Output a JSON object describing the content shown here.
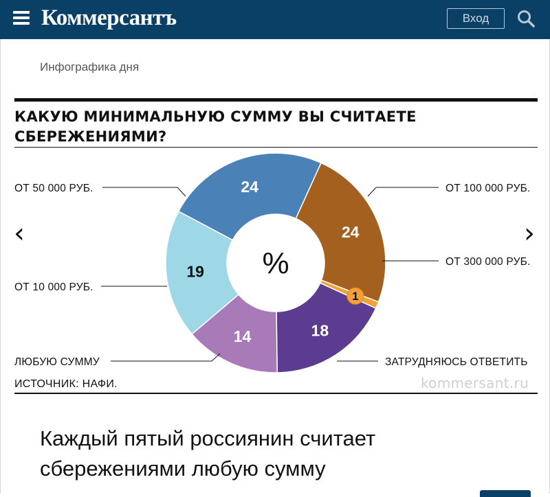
{
  "header": {
    "logo": "Коммерсантъ",
    "login_label": "Вход"
  },
  "section": "Инфографика дня",
  "nav": {
    "prev": "‹",
    "next": "›"
  },
  "chart_data": {
    "type": "pie",
    "title": "КАКУЮ МИНИМАЛЬНУЮ СУММУ ВЫ СЧИТАЕТЕ СБЕРЕЖЕНИЯМИ?",
    "center_label": "%",
    "slices": [
      {
        "label": "ОТ 100 000 РУБ.",
        "value": 24,
        "color": "#4a82b8"
      },
      {
        "label": "ОТ 300 000 РУБ.",
        "value": 24,
        "color": "#a4601f"
      },
      {
        "label": "ЗАТРУДНЯЮСЬ ОТВЕТИТЬ",
        "value": 1,
        "color": "#f4a03a"
      },
      {
        "label": "ЛЮБУЮ СУММУ",
        "value": 18,
        "color": "#5b3c91"
      },
      {
        "label": "ОТ 10 000 РУБ.",
        "value": 14,
        "color": "#a97ab8"
      },
      {
        "label": "ОТ 50 000 РУБ.",
        "value": 19,
        "color": "#9ed8e6"
      }
    ],
    "source": "ИСТОЧНИК: НАФИ.",
    "credit": "kommersant.ru"
  },
  "headline": "Каждый пятый россиянин считает сбережениями любую сумму"
}
